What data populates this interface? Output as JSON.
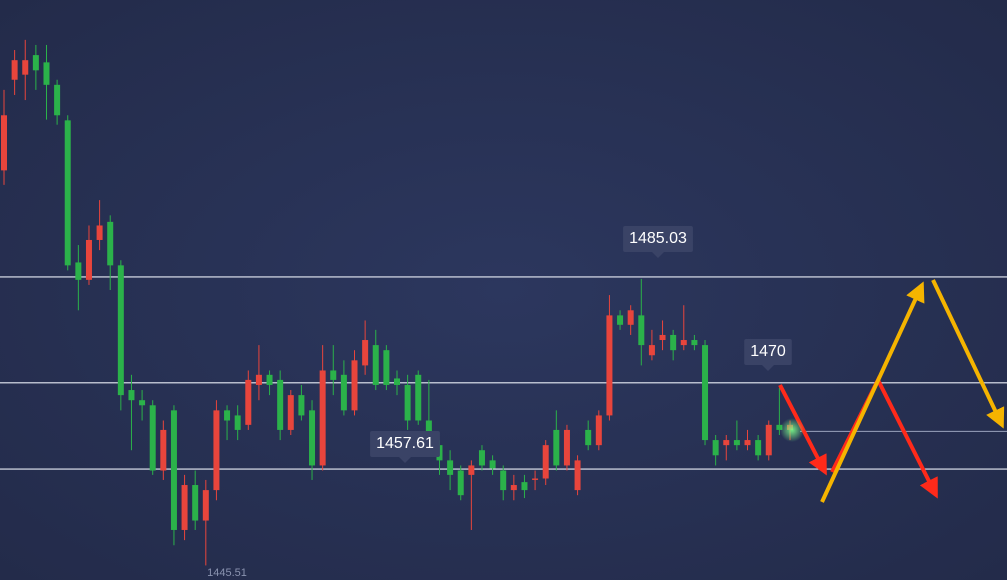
{
  "chart_data": {
    "type": "candlestick",
    "open": [
      1500.0,
      1512.5,
      1513.2,
      1515.9,
      1514.9,
      1511.8,
      1506.9,
      1487.3,
      1484.9,
      1490.4,
      1492.9,
      1486.9,
      1469.7,
      1468.3,
      1467.6,
      1458.6,
      1466.9,
      1450.4,
      1456.6,
      1451.7,
      1455.9,
      1466.9,
      1466.2,
      1464.9,
      1470.4,
      1471.8,
      1471.1,
      1464.2,
      1469.0,
      1466.9,
      1459.3,
      1472.4,
      1471.8,
      1466.9,
      1473.1,
      1475.9,
      1475.2,
      1471.3,
      1470.4,
      1471.8,
      1465.5,
      1462.1,
      1460.0,
      1458.6,
      1458.0,
      1461.4,
      1460.0,
      1458.6,
      1455.9,
      1457.0,
      1457.3,
      1457.5,
      1464.2,
      1459.3,
      1455.9,
      1464.2,
      1462.1,
      1466.2,
      1480.0,
      1478.7,
      1480.0,
      1474.5,
      1476.6,
      1477.3,
      1475.9,
      1476.6,
      1475.9,
      1462.8,
      1462.1,
      1462.8,
      1462.1,
      1462.8,
      1460.7,
      1464.9,
      1464.2
    ],
    "high": [
      1511.1,
      1516.6,
      1518.0,
      1517.3,
      1517.3,
      1512.5,
      1507.6,
      1489.7,
      1492.4,
      1495.9,
      1493.8,
      1487.6,
      1471.8,
      1469.7,
      1468.3,
      1465.5,
      1467.6,
      1458.0,
      1458.6,
      1457.3,
      1468.3,
      1467.6,
      1467.6,
      1472.4,
      1475.9,
      1472.4,
      1472.4,
      1469.7,
      1470.4,
      1468.3,
      1475.9,
      1475.9,
      1473.8,
      1475.2,
      1479.3,
      1478.0,
      1475.9,
      1472.4,
      1471.8,
      1472.4,
      1471.1,
      1462.8,
      1461.4,
      1459.3,
      1460.0,
      1462.1,
      1460.7,
      1459.3,
      1458.0,
      1458.0,
      1458.6,
      1462.8,
      1466.9,
      1464.9,
      1460.7,
      1465.5,
      1466.9,
      1482.8,
      1480.7,
      1481.4,
      1485.03,
      1478.0,
      1479.3,
      1478.0,
      1481.4,
      1477.3,
      1476.6,
      1463.5,
      1463.5,
      1465.5,
      1464.2,
      1463.5,
      1465.5,
      1470,
      1465.5
    ],
    "low": [
      1498.0,
      1510.4,
      1509.7,
      1511.1,
      1507.0,
      1506.3,
      1486.2,
      1480.7,
      1484.2,
      1489.0,
      1483.5,
      1466.9,
      1461.4,
      1465.5,
      1458.0,
      1457.3,
      1448.3,
      1449.0,
      1450.4,
      1445.51,
      1454.5,
      1462.8,
      1462.8,
      1464.2,
      1468.3,
      1469.0,
      1462.8,
      1463.5,
      1465.5,
      1457.3,
      1458.6,
      1469.0,
      1466.2,
      1466.2,
      1471.8,
      1469.7,
      1469.7,
      1469.0,
      1464.2,
      1464.9,
      1462.1,
      1458.0,
      1455.9,
      1454.5,
      1450.4,
      1458.6,
      1458.0,
      1454.5,
      1454.5,
      1454.8,
      1455.9,
      1456.6,
      1458.6,
      1458.6,
      1455.2,
      1461.4,
      1461.4,
      1465.5,
      1478.0,
      1477.3,
      1473.1,
      1473.8,
      1475.2,
      1473.8,
      1475.2,
      1475.2,
      1462.1,
      1459.3,
      1460.0,
      1461.4,
      1461.4,
      1460.0,
      1460.0,
      1463.5,
      1462.8
    ],
    "close": [
      1507.6,
      1515.2,
      1515.2,
      1513.8,
      1511.8,
      1507.6,
      1486.9,
      1484.9,
      1490.4,
      1492.4,
      1486.9,
      1469.0,
      1468.3,
      1467.6,
      1458.6,
      1464.2,
      1450.4,
      1456.6,
      1451.7,
      1455.9,
      1466.9,
      1465.5,
      1464.2,
      1471.1,
      1471.8,
      1470.4,
      1464.2,
      1469.0,
      1466.2,
      1459.3,
      1472.4,
      1471.1,
      1466.9,
      1473.8,
      1476.6,
      1470.4,
      1470.4,
      1470.4,
      1465.5,
      1465.5,
      1462.8,
      1460.0,
      1458.0,
      1455.2,
      1459.3,
      1459.3,
      1458.9,
      1455.9,
      1456.6,
      1455.9,
      1457.5,
      1462.1,
      1459.3,
      1464.2,
      1460.0,
      1462.1,
      1466.2,
      1480.0,
      1478.7,
      1480.7,
      1475.9,
      1475.9,
      1477.3,
      1475.2,
      1476.6,
      1475.9,
      1462.8,
      1460.7,
      1462.8,
      1462.1,
      1462.8,
      1460.7,
      1464.9,
      1464.2,
      1464.9
    ],
    "up_color": "#e8453c",
    "down_color": "#2bb24a",
    "ylim": [
      1443.5,
      1523.5
    ],
    "levels": [
      1485.3,
      1470.7,
      1458.8
    ],
    "target_level": 1464.0,
    "annotations": [
      1485.03,
      1470,
      1457.61,
      1445.51
    ]
  }
}
